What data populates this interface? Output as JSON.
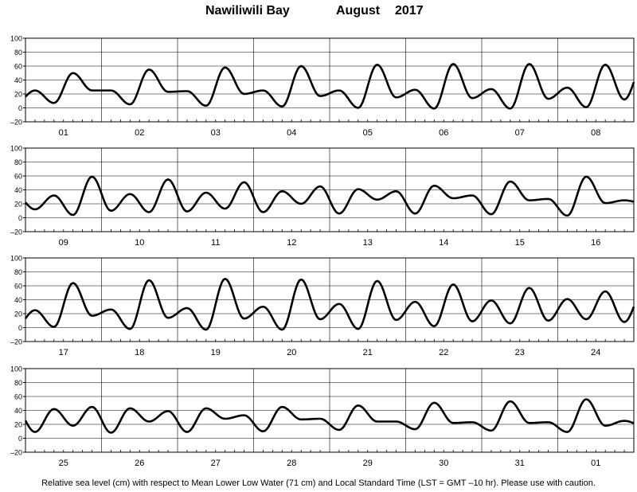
{
  "title": {
    "station": "Nawiliwili Bay",
    "month": "August",
    "year": "2017"
  },
  "footer": "Relative sea level (cm) with respect to Mean Lower Low Water (71 cm) and Local Standard Time (LST = GMT –10 hr). Please use with caution.",
  "chart_data": {
    "type": "line",
    "title": "Nawiliwili Bay   August 2017",
    "ylabel": "",
    "xlabel": "",
    "ylim": [
      -20,
      100
    ],
    "yticks": [
      "100",
      "80",
      "60",
      "40",
      "20",
      "0",
      "–20"
    ],
    "grid": true,
    "color": "#000000",
    "x_unit": "hour",
    "panels": [
      {
        "days": [
          "01",
          "02",
          "03",
          "04",
          "05",
          "06",
          "07",
          "08"
        ],
        "series": [
          {
            "values": [
              25,
              7,
              50,
              25,
              25,
              5,
              55,
              23,
              24,
              3,
              58,
              20,
              25,
              2,
              60,
              17,
              25,
              0,
              62,
              15,
              26,
              -1,
              63,
              14,
              27,
              -1,
              63,
              13,
              29,
              1,
              62,
              12
            ]
          }
        ]
      },
      {
        "days": [
          "09",
          "10",
          "11",
          "12",
          "13",
          "14",
          "15",
          "16"
        ],
        "series": [
          {
            "values": [
              12,
              32,
              4,
              59,
              10,
              34,
              8,
              55,
              9,
              36,
              13,
              51,
              8,
              38,
              20,
              45,
              6,
              41,
              26,
              38,
              6,
              46,
              28,
              32,
              5,
              52,
              25,
              27,
              3,
              59,
              21,
              25
            ]
          }
        ]
      },
      {
        "days": [
          "17",
          "18",
          "19",
          "20",
          "21",
          "22",
          "23",
          "24"
        ],
        "series": [
          {
            "values": [
              25,
              1,
              64,
              17,
              26,
              -2,
              68,
              14,
              28,
              -3,
              70,
              13,
              30,
              -3,
              69,
              12,
              34,
              -2,
              67,
              11,
              37,
              2,
              62,
              9,
              39,
              6,
              57,
              10,
              41,
              12,
              52,
              8
            ]
          }
        ]
      },
      {
        "days": [
          "25",
          "26",
          "27",
          "28",
          "29",
          "30",
          "31",
          "01"
        ],
        "series": [
          {
            "values": [
              9,
              42,
              18,
              45,
              8,
              43,
              24,
              39,
              9,
              43,
              28,
              33,
              10,
              45,
              27,
              28,
              12,
              47,
              24,
              24,
              13,
              51,
              22,
              23,
              11,
              53,
              22,
              23,
              9,
              56,
              18,
              25
            ]
          }
        ]
      }
    ]
  }
}
